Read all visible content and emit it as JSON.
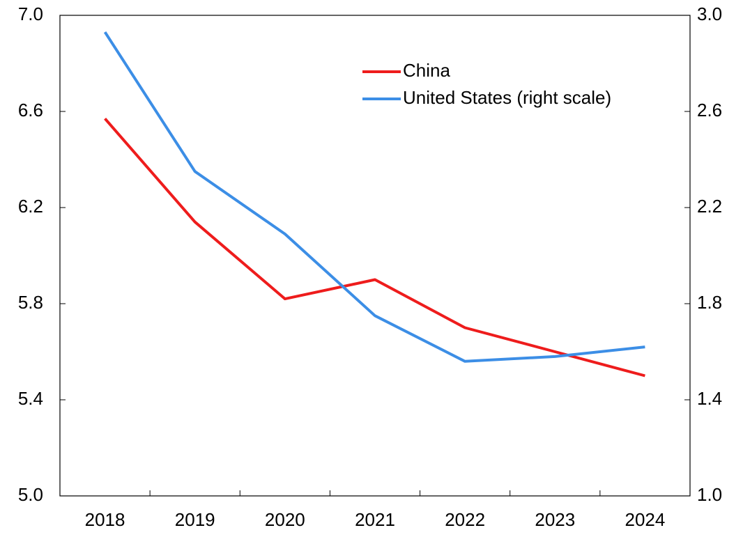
{
  "chart_data": {
    "type": "line",
    "categories": [
      "2018",
      "2019",
      "2020",
      "2021",
      "2022",
      "2023",
      "2024"
    ],
    "series": [
      {
        "name": "China",
        "color": "#ee1c1c",
        "values": [
          6.57,
          6.14,
          5.82,
          5.9,
          5.7,
          5.6,
          5.5
        ]
      },
      {
        "name": "United States (right scale)",
        "color": "#3c8ee6",
        "axis": "y2",
        "values": [
          2.93,
          2.35,
          2.09,
          1.75,
          1.56,
          1.58,
          1.62
        ]
      }
    ],
    "ylim": [
      5.0,
      7.0
    ],
    "yticks": [
      {
        "value": 5.0,
        "label": "5.0"
      },
      5.4,
      5.8,
      6.2,
      6.6,
      {
        "value": 7.0,
        "label": "7.0"
      }
    ],
    "y2lim": [
      1.0,
      3.0
    ],
    "y2ticks": [
      {
        "value": 1.0,
        "label": "1.0"
      },
      1.4,
      1.8,
      2.2,
      2.6,
      {
        "value": 3.0,
        "label": "3.0"
      }
    ],
    "legend": "upper right",
    "grid": false
  }
}
